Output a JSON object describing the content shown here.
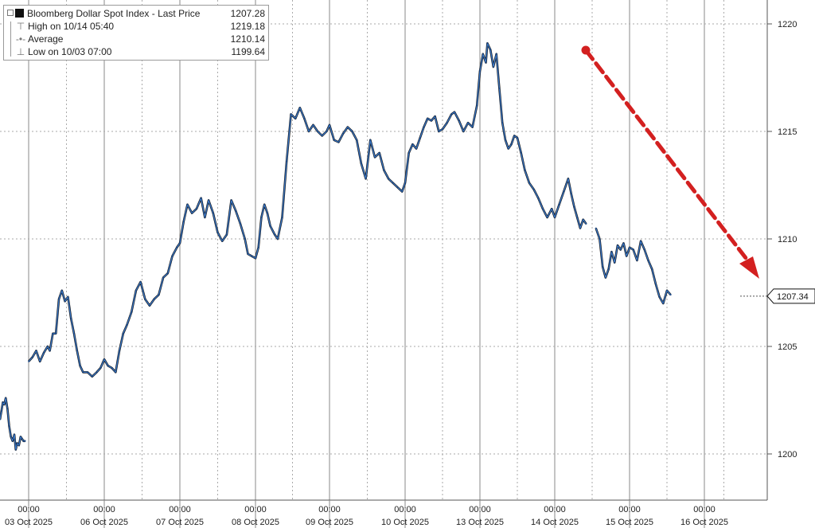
{
  "chart_data": {
    "type": "line",
    "title": "Bloomberg Dollar Spot Index - Last Price",
    "legend": [
      {
        "label": "Bloomberg Dollar Spot Index - Last Price",
        "value": "1207.28",
        "icon": "black-square-icon"
      },
      {
        "label": "High on 10/14 05:40",
        "value": "1219.18",
        "icon": "high-marker-icon"
      },
      {
        "label": "Average",
        "value": "1210.14",
        "icon": "average-marker-icon"
      },
      {
        "label": "Low on 10/03 07:00",
        "value": "1199.64",
        "icon": "low-marker-icon"
      }
    ],
    "legend_position": "top-left",
    "y_axis": {
      "side": "right",
      "range": [
        1198,
        1222
      ],
      "ticks": [
        1200,
        1205,
        1210,
        1215,
        1220
      ]
    },
    "x_axis": {
      "ticks": [
        {
          "time": "00:00",
          "date": "03 Oct 2025"
        },
        {
          "time": "00:00",
          "date": "06 Oct 2025"
        },
        {
          "time": "00:00",
          "date": "07 Oct 2025"
        },
        {
          "time": "00:00",
          "date": "08 Oct 2025"
        },
        {
          "time": "00:00",
          "date": "09 Oct 2025"
        },
        {
          "time": "00:00",
          "date": "10 Oct 2025"
        },
        {
          "time": "00:00",
          "date": "13 Oct 2025"
        },
        {
          "time": "00:00",
          "date": "14 Oct 2025"
        },
        {
          "time": "00:00",
          "date": "15 Oct 2025"
        },
        {
          "time": "00:00",
          "date": "16 Oct 2025"
        }
      ]
    },
    "last_price_tag": "1207.34",
    "series": [
      {
        "values": [
          [
            0.0,
            1201.6
          ],
          [
            0.05,
            1202.0
          ],
          [
            0.1,
            1202.4
          ],
          [
            0.15,
            1202.3
          ],
          [
            0.2,
            1202.6
          ],
          [
            0.26,
            1202.1
          ],
          [
            0.32,
            1201.3
          ],
          [
            0.38,
            1200.8
          ],
          [
            0.44,
            1200.6
          ],
          [
            0.5,
            1200.9
          ],
          [
            0.55,
            1200.2
          ],
          [
            0.6,
            1200.5
          ],
          [
            0.66,
            1200.4
          ],
          [
            0.72,
            1200.8
          ],
          [
            0.77,
            1200.7
          ],
          [
            0.82,
            1200.6
          ],
          [
            0.88,
            1200.6
          ],
          [
            1.0,
            1204.3
          ],
          [
            1.05,
            1204.5
          ],
          [
            1.1,
            1204.8
          ],
          [
            1.15,
            1204.3
          ],
          [
            1.2,
            1204.7
          ],
          [
            1.25,
            1205.0
          ],
          [
            1.28,
            1204.8
          ],
          [
            1.32,
            1205.6
          ],
          [
            1.36,
            1205.6
          ],
          [
            1.4,
            1207.2
          ],
          [
            1.44,
            1207.6
          ],
          [
            1.48,
            1207.1
          ],
          [
            1.52,
            1207.3
          ],
          [
            1.56,
            1206.3
          ],
          [
            1.6,
            1205.6
          ],
          [
            1.64,
            1204.8
          ],
          [
            1.68,
            1204.1
          ],
          [
            1.72,
            1203.8
          ],
          [
            1.78,
            1203.8
          ],
          [
            1.84,
            1203.6
          ],
          [
            1.9,
            1203.8
          ],
          [
            1.95,
            1204.0
          ],
          [
            2.0,
            1204.4
          ],
          [
            2.05,
            1204.1
          ],
          [
            2.1,
            1204.0
          ],
          [
            2.15,
            1203.8
          ],
          [
            2.2,
            1204.8
          ],
          [
            2.25,
            1205.6
          ],
          [
            2.3,
            1206.0
          ],
          [
            2.36,
            1206.6
          ],
          [
            2.42,
            1207.6
          ],
          [
            2.48,
            1208.0
          ],
          [
            2.54,
            1207.2
          ],
          [
            2.6,
            1206.9
          ],
          [
            2.66,
            1207.2
          ],
          [
            2.72,
            1207.4
          ],
          [
            2.78,
            1208.2
          ],
          [
            2.84,
            1208.4
          ],
          [
            2.9,
            1209.2
          ],
          [
            2.96,
            1209.6
          ],
          [
            3.0,
            1209.8
          ],
          [
            3.05,
            1210.8
          ],
          [
            3.1,
            1211.6
          ],
          [
            3.16,
            1211.2
          ],
          [
            3.22,
            1211.4
          ],
          [
            3.28,
            1211.9
          ],
          [
            3.33,
            1211.0
          ],
          [
            3.38,
            1211.8
          ],
          [
            3.44,
            1211.2
          ],
          [
            3.5,
            1210.3
          ],
          [
            3.56,
            1209.9
          ],
          [
            3.62,
            1210.2
          ],
          [
            3.68,
            1211.8
          ],
          [
            3.74,
            1211.3
          ],
          [
            3.8,
            1210.7
          ],
          [
            3.86,
            1210.0
          ],
          [
            3.9,
            1209.3
          ],
          [
            3.95,
            1209.2
          ],
          [
            4.0,
            1209.1
          ],
          [
            4.04,
            1209.6
          ],
          [
            4.08,
            1211.0
          ],
          [
            4.12,
            1211.6
          ],
          [
            4.16,
            1211.2
          ],
          [
            4.2,
            1210.6
          ],
          [
            4.26,
            1210.2
          ],
          [
            4.3,
            1210.0
          ],
          [
            4.36,
            1211.0
          ],
          [
            4.42,
            1213.6
          ],
          [
            4.48,
            1215.8
          ],
          [
            4.54,
            1215.6
          ],
          [
            4.6,
            1216.1
          ],
          [
            4.66,
            1215.6
          ],
          [
            4.72,
            1215.0
          ],
          [
            4.78,
            1215.3
          ],
          [
            4.84,
            1215.0
          ],
          [
            4.9,
            1214.8
          ],
          [
            4.96,
            1215.0
          ],
          [
            5.0,
            1215.3
          ],
          [
            5.06,
            1214.6
          ],
          [
            5.12,
            1214.5
          ],
          [
            5.18,
            1214.9
          ],
          [
            5.24,
            1215.2
          ],
          [
            5.3,
            1215.0
          ],
          [
            5.36,
            1214.6
          ],
          [
            5.42,
            1213.5
          ],
          [
            5.48,
            1212.8
          ],
          [
            5.54,
            1214.6
          ],
          [
            5.6,
            1213.8
          ],
          [
            5.66,
            1214.0
          ],
          [
            5.72,
            1213.2
          ],
          [
            5.78,
            1212.8
          ],
          [
            5.84,
            1212.6
          ],
          [
            5.9,
            1212.4
          ],
          [
            5.96,
            1212.2
          ],
          [
            6.0,
            1212.6
          ],
          [
            6.05,
            1214.0
          ],
          [
            6.1,
            1214.4
          ],
          [
            6.15,
            1214.2
          ],
          [
            6.2,
            1214.7
          ],
          [
            6.25,
            1215.2
          ],
          [
            6.3,
            1215.6
          ],
          [
            6.35,
            1215.5
          ],
          [
            6.4,
            1215.7
          ],
          [
            6.45,
            1215.0
          ],
          [
            6.5,
            1215.1
          ],
          [
            6.56,
            1215.4
          ],
          [
            6.62,
            1215.8
          ],
          [
            6.66,
            1215.9
          ],
          [
            6.72,
            1215.5
          ],
          [
            6.78,
            1215.0
          ],
          [
            6.84,
            1215.4
          ],
          [
            6.9,
            1215.2
          ],
          [
            6.96,
            1216.2
          ],
          [
            7.0,
            1217.8
          ],
          [
            7.04,
            1218.6
          ],
          [
            7.08,
            1218.2
          ],
          [
            7.1,
            1219.1
          ],
          [
            7.14,
            1218.8
          ],
          [
            7.18,
            1218.0
          ],
          [
            7.22,
            1218.6
          ],
          [
            7.26,
            1217.0
          ],
          [
            7.3,
            1215.4
          ],
          [
            7.34,
            1214.6
          ],
          [
            7.38,
            1214.2
          ],
          [
            7.42,
            1214.4
          ],
          [
            7.46,
            1214.8
          ],
          [
            7.5,
            1214.7
          ],
          [
            7.55,
            1214.0
          ],
          [
            7.6,
            1213.2
          ],
          [
            7.66,
            1212.6
          ],
          [
            7.72,
            1212.3
          ],
          [
            7.78,
            1211.9
          ],
          [
            7.84,
            1211.4
          ],
          [
            7.9,
            1211.0
          ],
          [
            7.96,
            1211.4
          ],
          [
            8.0,
            1211.0
          ],
          [
            8.06,
            1211.6
          ],
          [
            8.12,
            1212.2
          ],
          [
            8.18,
            1212.8
          ],
          [
            8.22,
            1212.1
          ],
          [
            8.26,
            1211.5
          ],
          [
            8.3,
            1211.0
          ],
          [
            8.34,
            1210.5
          ],
          [
            8.38,
            1210.9
          ],
          [
            8.42,
            1210.7
          ],
          [
            8.55,
            1210.5
          ],
          [
            8.6,
            1210.0
          ],
          [
            8.64,
            1208.7
          ],
          [
            8.68,
            1208.2
          ],
          [
            8.72,
            1208.6
          ],
          [
            8.76,
            1209.4
          ],
          [
            8.8,
            1208.9
          ],
          [
            8.84,
            1209.7
          ],
          [
            8.88,
            1209.5
          ],
          [
            8.92,
            1209.8
          ],
          [
            8.96,
            1209.2
          ],
          [
            9.0,
            1209.6
          ],
          [
            9.05,
            1209.5
          ],
          [
            9.1,
            1209.0
          ],
          [
            9.15,
            1209.9
          ],
          [
            9.2,
            1209.5
          ],
          [
            9.25,
            1209.0
          ],
          [
            9.3,
            1208.6
          ],
          [
            9.35,
            1207.9
          ],
          [
            9.4,
            1207.3
          ],
          [
            9.45,
            1207.0
          ],
          [
            9.5,
            1207.6
          ],
          [
            9.55,
            1207.4
          ]
        ]
      }
    ]
  }
}
